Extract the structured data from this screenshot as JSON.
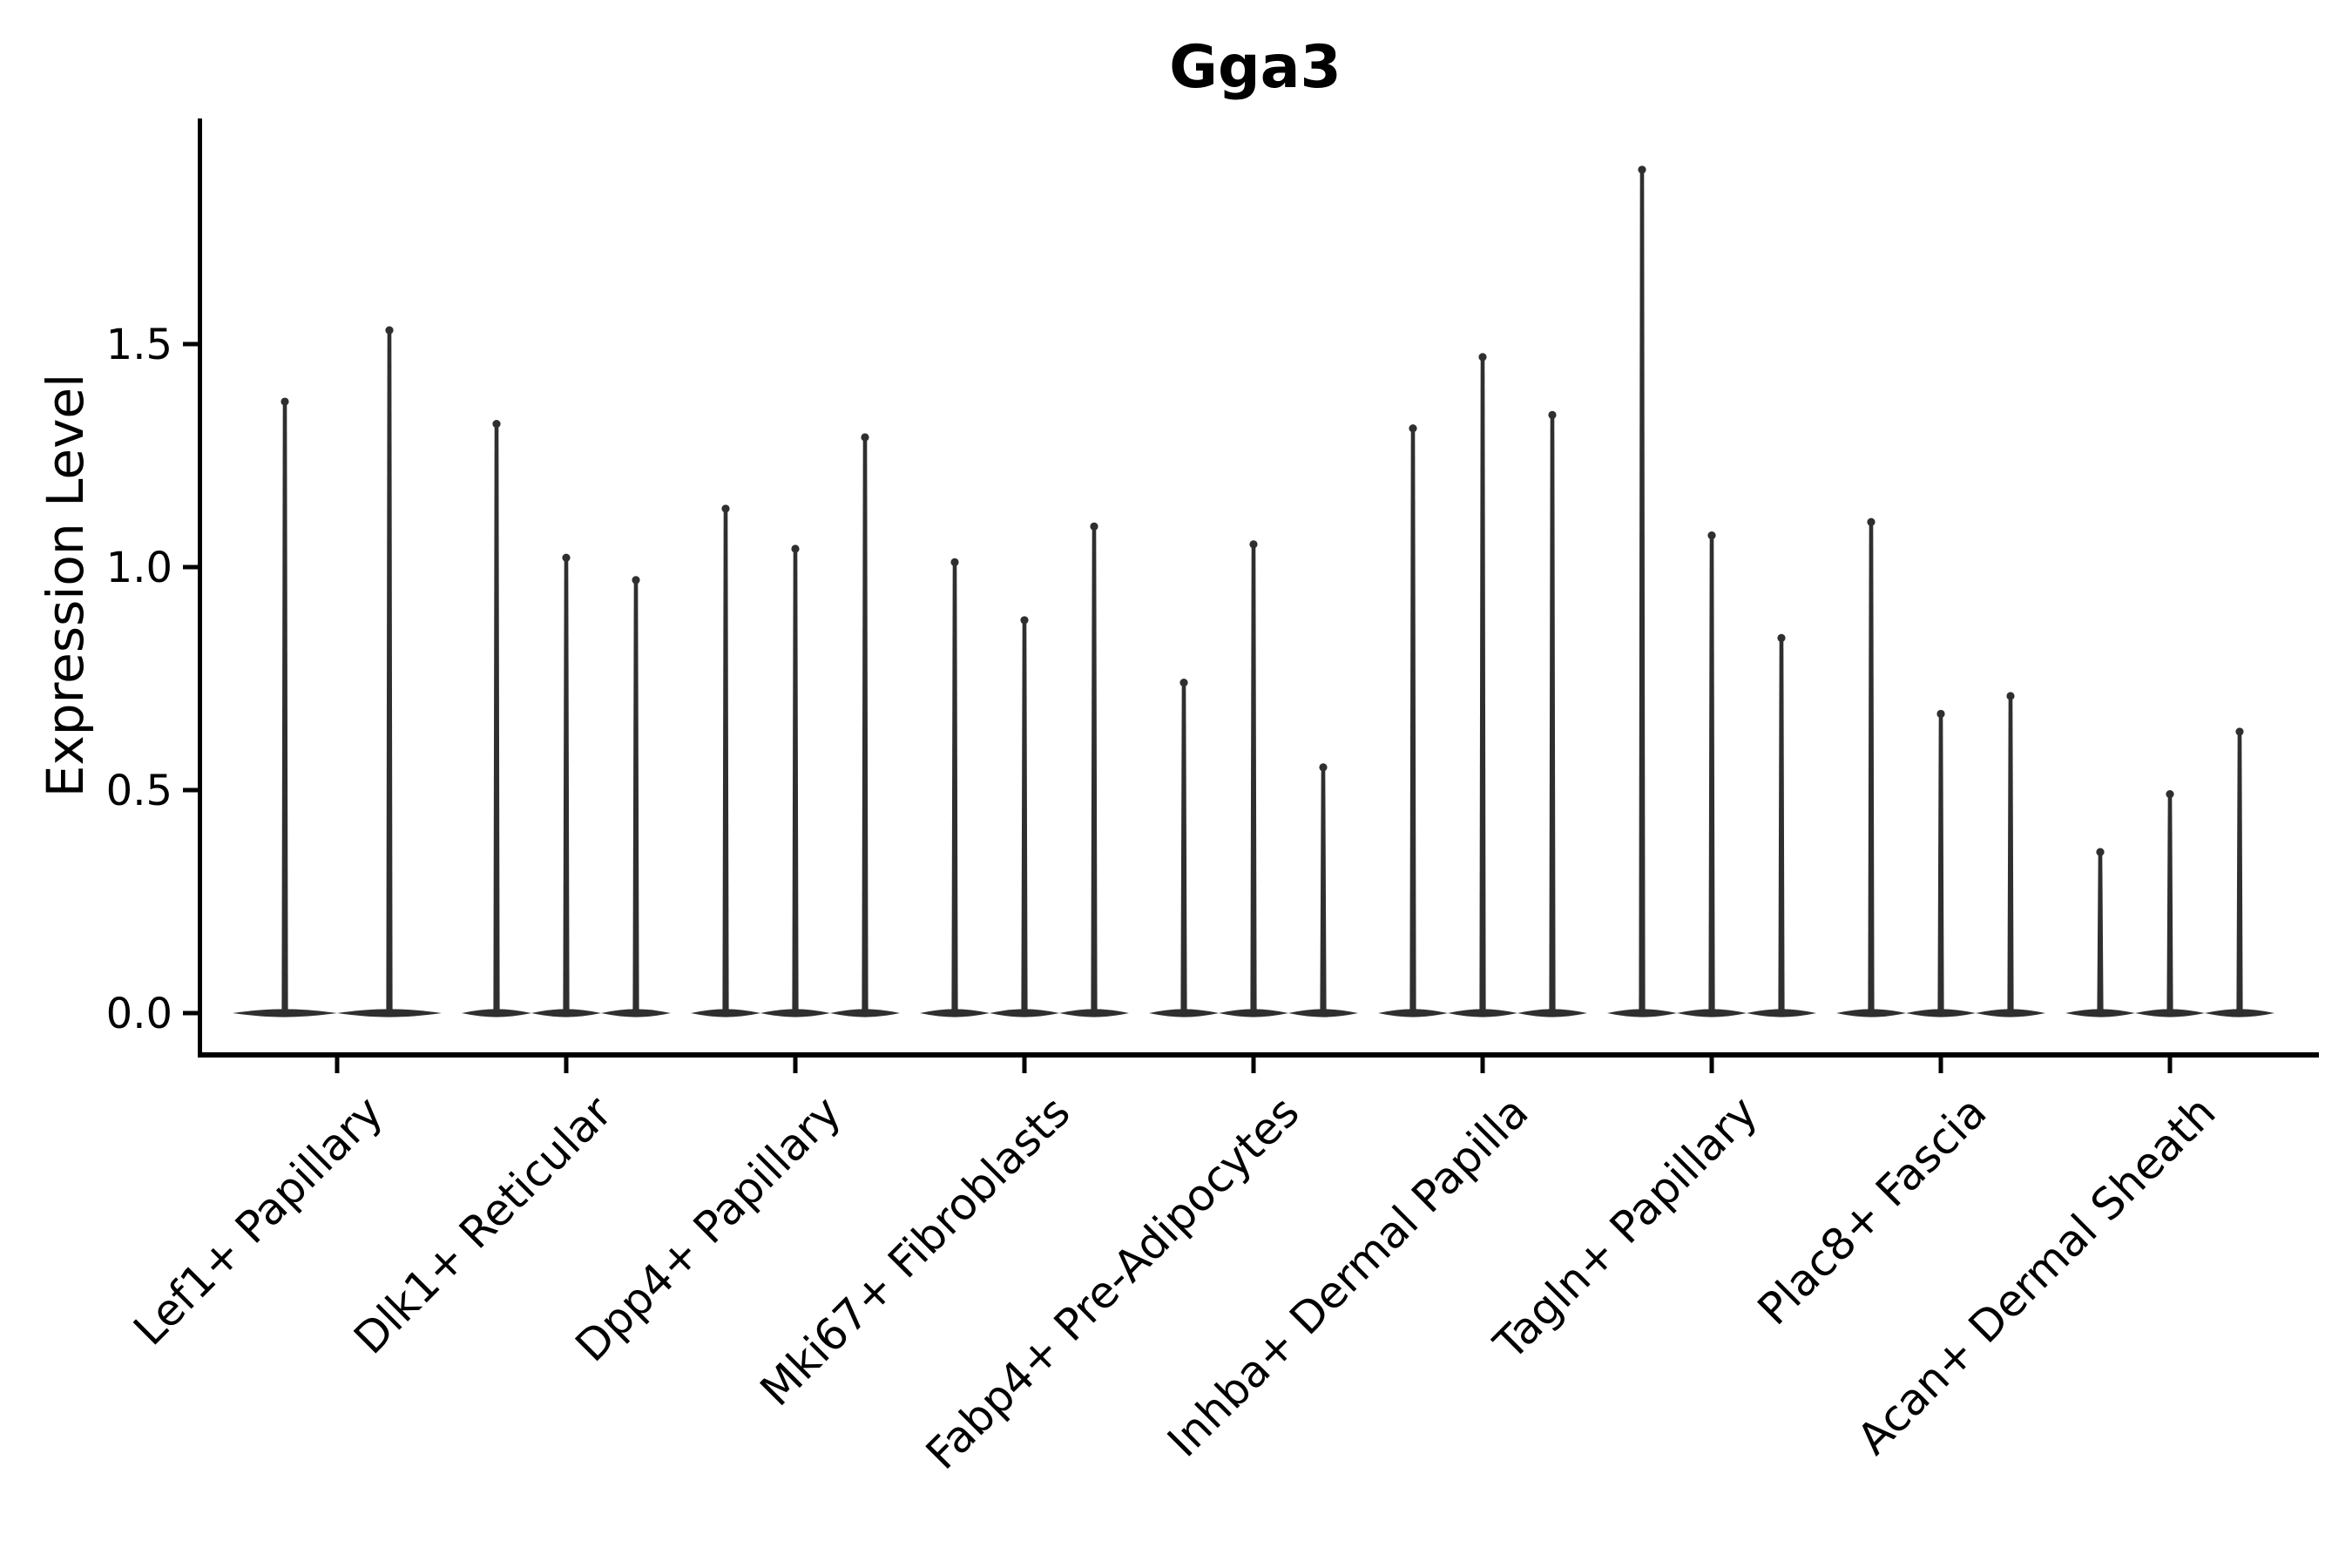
{
  "title": "Gga3",
  "colors": {
    "violin_fill": "#2f2f2f",
    "axis": "#000000",
    "text": "#000000",
    "background": "#ffffff"
  },
  "chart_data": {
    "type": "violin",
    "title": "Gga3",
    "xlabel": "",
    "ylabel": "Expression Level",
    "ylim": [
      -0.09,
      2.01
    ],
    "yticks": [
      0.0,
      0.5,
      1.0,
      1.5
    ],
    "ytick_labels": [
      "0.0",
      "0.5",
      "1.0",
      "1.5"
    ],
    "grid": false,
    "legend": "none",
    "description": "Single-cell gene expression violin plot for gene Gga3; each category shows 2-3 thin violins (mostly-zero expression with narrow spikes up to the max expression value).",
    "categories": [
      "Lef1+ Papillary",
      "Dlk1+ Reticular",
      "Dpp4+ Papillary",
      "Mki67+ Fibroblasts",
      "Fabp4+ Pre-Adipocytes",
      "Inhba+ Dermal Papilla",
      "Tagln+ Papillary",
      "Plac8+ Fascia",
      "Acan+ Dermal Sheath"
    ],
    "groups": [
      {
        "label": "Lef1+ Papillary",
        "violin_peaks": [
          1.38,
          1.54
        ]
      },
      {
        "label": "Dlk1+ Reticular",
        "violin_peaks": [
          1.33,
          1.03,
          0.98
        ]
      },
      {
        "label": "Dpp4+ Papillary",
        "violin_peaks": [
          1.14,
          1.05,
          1.3
        ]
      },
      {
        "label": "Mki67+ Fibroblasts",
        "violin_peaks": [
          1.02,
          0.89,
          1.1
        ]
      },
      {
        "label": "Fabp4+ Pre-Adipocytes",
        "violin_peaks": [
          0.75,
          1.06,
          0.56
        ]
      },
      {
        "label": "Inhba+ Dermal Papilla",
        "violin_peaks": [
          1.32,
          1.48,
          1.35
        ]
      },
      {
        "label": "Tagln+ Papillary",
        "violin_peaks": [
          1.9,
          1.08,
          0.85
        ]
      },
      {
        "label": "Plac8+ Fascia",
        "violin_peaks": [
          1.11,
          0.68,
          0.72
        ]
      },
      {
        "label": "Acan+ Dermal Sheath",
        "violin_peaks": [
          0.37,
          0.5,
          0.64
        ]
      }
    ]
  }
}
